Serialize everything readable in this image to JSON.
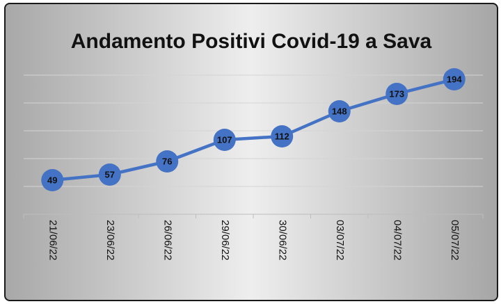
{
  "chart_data": {
    "type": "line",
    "title": "Andamento Positivi Covid-19 a Sava",
    "categories": [
      "21/06/22",
      "23/06/22",
      "26/06/22",
      "29/06/22",
      "30/06/22",
      "03/07/22",
      "04/07/22",
      "05/07/22"
    ],
    "series": [
      {
        "values": [
          49,
          57,
          76,
          107,
          112,
          148,
          173,
          194
        ]
      }
    ],
    "ylim": [
      0,
      220
    ],
    "grid": true,
    "y_axis_visible": false,
    "line_color": "#4472c4",
    "marker_color": "#4472c4"
  }
}
